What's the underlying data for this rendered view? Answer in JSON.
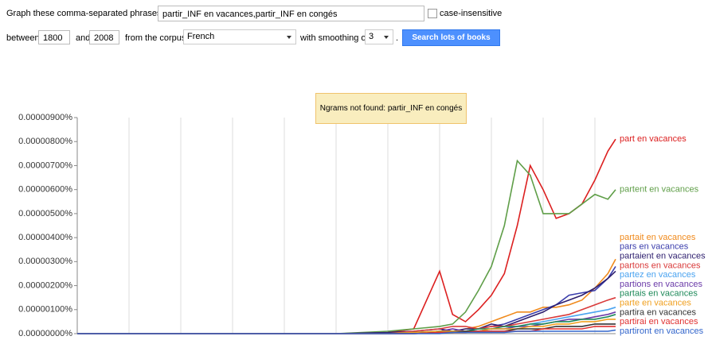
{
  "form": {
    "phrases_label": "Graph these comma-separated phrases:",
    "phrases_value": "partir_INF en vacances,partir_INF en congés",
    "case_label": "case-insensitive",
    "between": "between",
    "start_year": "1800",
    "and": "and",
    "end_year": "2008",
    "corpus_label": "from the corpus",
    "corpus": "French",
    "smoothing_label": "with smoothing of",
    "smoothing": "3",
    "period": ".",
    "button": "Search lots of books"
  },
  "notice": "Ngrams not found: partir_INF en congés",
  "chart_data": {
    "type": "line",
    "x": [
      1800,
      1850,
      1880,
      1900,
      1920,
      1930,
      1940,
      1945,
      1950,
      1955,
      1960,
      1965,
      1970,
      1975,
      1980,
      1985,
      1990,
      1995,
      2000,
      2005,
      2008
    ],
    "xlim": [
      1800,
      2008
    ],
    "xticks": [
      1800,
      1820,
      1840,
      1860,
      1880,
      1900,
      1920,
      1940,
      1960,
      1980,
      2000
    ],
    "ylim": [
      0,
      9e-06
    ],
    "yticks": [
      {
        "value": 0,
        "label": "0.00000000%"
      },
      {
        "value": 1e-06,
        "label": "0.00000100%"
      },
      {
        "value": 2e-06,
        "label": "0.00000200%"
      },
      {
        "value": 3e-06,
        "label": "0.00000300%"
      },
      {
        "value": 4e-06,
        "label": "0.00000400%"
      },
      {
        "value": 5e-06,
        "label": "0.00000500%"
      },
      {
        "value": 6e-06,
        "label": "0.00000600%"
      },
      {
        "value": 7e-06,
        "label": "0.00000700%"
      },
      {
        "value": 8e-06,
        "label": "0.00000800%"
      },
      {
        "value": 9e-06,
        "label": "0.00000900%"
      }
    ],
    "grid": true,
    "series": [
      {
        "name": "part en vacances",
        "color": "#dc2020",
        "values": [
          0,
          0,
          0,
          0,
          5e-08,
          2e-07,
          2.6e-06,
          8e-07,
          5e-07,
          1e-06,
          1.6e-06,
          2.5e-06,
          4.5e-06,
          7e-06,
          6e-06,
          4.8e-06,
          5e-06,
          5.4e-06,
          6.4e-06,
          7.6e-06,
          8.1e-06
        ]
      },
      {
        "name": "partent en vacances",
        "color": "#5f9e48",
        "values": [
          0,
          0,
          0,
          0,
          1e-07,
          2e-07,
          3e-07,
          4e-07,
          9e-07,
          1.8e-06,
          2.8e-06,
          4.5e-06,
          7.2e-06,
          6.6e-06,
          5e-06,
          5e-06,
          5e-06,
          5.4e-06,
          5.8e-06,
          5.6e-06,
          6e-06
        ]
      },
      {
        "name": "partait en vacances",
        "color": "#f08a1c",
        "values": [
          0,
          0,
          0,
          0,
          0,
          0,
          1e-07,
          1e-07,
          2e-07,
          3e-07,
          5e-07,
          7e-07,
          9e-07,
          9e-07,
          1.1e-06,
          1.1e-06,
          1.2e-06,
          1.4e-06,
          1.9e-06,
          2.5e-06,
          3.1e-06
        ]
      },
      {
        "name": "pars en vacances",
        "color": "#3b3eac",
        "values": [
          0,
          0,
          0,
          0,
          0,
          5e-08,
          1e-07,
          1e-07,
          1e-07,
          2e-07,
          3e-07,
          4e-07,
          6e-07,
          8e-07,
          1e-06,
          1.2e-06,
          1.6e-06,
          1.7e-06,
          1.8e-06,
          2.3e-06,
          2.8e-06
        ]
      },
      {
        "name": "partaient en vacances",
        "color": "#2e1f6e",
        "values": [
          0,
          0,
          0,
          0,
          5e-08,
          1e-07,
          2e-07,
          1e-07,
          2e-07,
          2e-07,
          4e-07,
          3e-07,
          5e-07,
          7e-07,
          9e-07,
          1.2e-06,
          1.4e-06,
          1.6e-06,
          1.9e-06,
          2.3e-06,
          2.6e-06
        ]
      },
      {
        "name": "partons en vacances",
        "color": "#d93a3a",
        "values": [
          0,
          0,
          0,
          0,
          0,
          1e-07,
          2e-07,
          3e-07,
          3e-07,
          2e-07,
          3e-07,
          3e-07,
          4e-07,
          5e-07,
          6e-07,
          7e-07,
          8e-07,
          1e-06,
          1.2e-06,
          1.4e-06,
          1.5e-06
        ]
      },
      {
        "name": "partez en vacances",
        "color": "#4aa3f0",
        "values": [
          0,
          0,
          0,
          0,
          0,
          0,
          5e-08,
          1e-07,
          1e-07,
          1e-07,
          2e-07,
          2e-07,
          3e-07,
          4e-07,
          5e-07,
          6e-07,
          7e-07,
          8e-07,
          9e-07,
          1e-06,
          1.1e-06
        ]
      },
      {
        "name": "partions en vacances",
        "color": "#6a3aa8",
        "values": [
          0,
          0,
          0,
          0,
          0,
          5e-08,
          1e-07,
          2e-07,
          1e-07,
          1e-07,
          2e-07,
          2e-07,
          3e-07,
          3e-07,
          4e-07,
          5e-07,
          6e-07,
          6e-07,
          7e-07,
          8e-07,
          9e-07
        ]
      },
      {
        "name": "partais en vacances",
        "color": "#1f8a5a",
        "values": [
          0,
          0,
          0,
          0,
          0,
          5e-08,
          1e-07,
          1e-07,
          1e-07,
          2e-07,
          2e-07,
          3e-07,
          3e-07,
          4e-07,
          4e-07,
          5e-07,
          5e-07,
          6e-07,
          6e-07,
          7e-07,
          8e-07
        ]
      },
      {
        "name": "parte en vacances",
        "color": "#f0a020",
        "values": [
          0,
          0,
          0,
          0,
          0,
          5e-08,
          1e-07,
          1e-07,
          1e-07,
          1e-07,
          2e-07,
          2e-07,
          2e-07,
          3e-07,
          3e-07,
          4e-07,
          4e-07,
          5e-07,
          5e-07,
          6e-07,
          6e-07
        ]
      },
      {
        "name": "partira en vacances",
        "color": "#333333",
        "values": [
          0,
          0,
          0,
          0,
          0,
          0,
          5e-08,
          5e-08,
          1e-07,
          1e-07,
          1e-07,
          1e-07,
          2e-07,
          2e-07,
          2e-07,
          3e-07,
          3e-07,
          3e-07,
          4e-07,
          4e-07,
          4e-07
        ]
      },
      {
        "name": "partirai en vacances",
        "color": "#e03030",
        "values": [
          0,
          0,
          0,
          0,
          0,
          0,
          5e-08,
          5e-08,
          5e-08,
          1e-07,
          1e-07,
          1e-07,
          1e-07,
          1e-07,
          2e-07,
          2e-07,
          2e-07,
          2e-07,
          3e-07,
          3e-07,
          3e-07
        ]
      },
      {
        "name": "partiront en vacances",
        "color": "#3366cc",
        "values": [
          0,
          0,
          0,
          0,
          0,
          0,
          0,
          5e-08,
          5e-08,
          5e-08,
          5e-08,
          5e-08,
          1e-07,
          1e-07,
          1e-07,
          1e-07,
          1e-07,
          1e-07,
          1e-07,
          1e-07,
          1.5e-07
        ]
      }
    ]
  }
}
